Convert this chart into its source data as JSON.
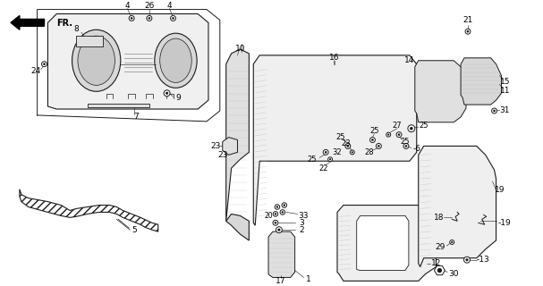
{
  "bg_color": "#ffffff",
  "line_color": "#1a1a1a",
  "fig_width": 6.07,
  "fig_height": 3.2,
  "dpi": 100
}
